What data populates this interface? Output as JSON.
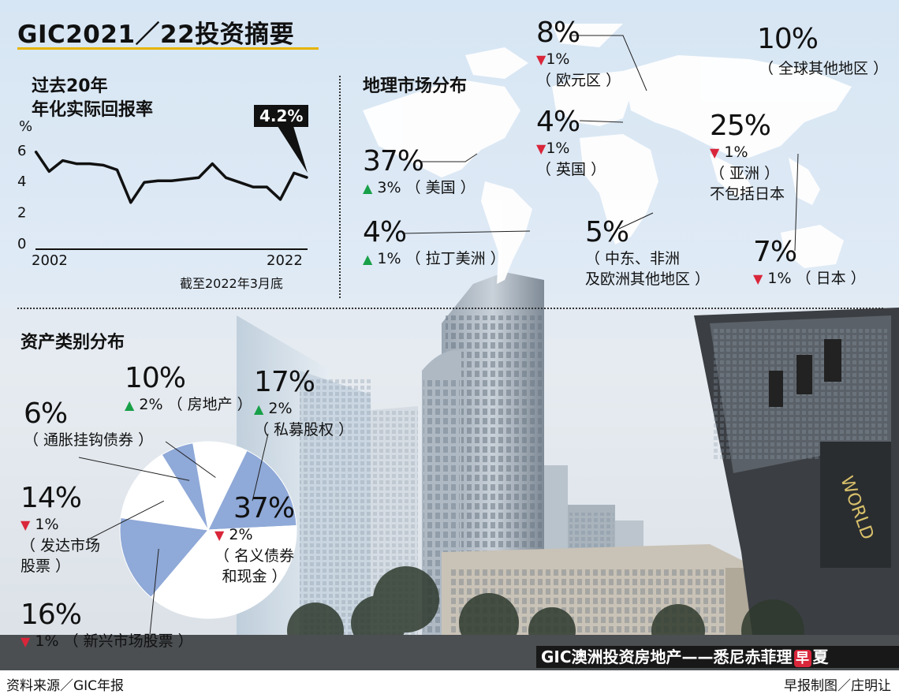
{
  "title": "GIC2021／22投资摘要",
  "returns": {
    "heading_line1": "过去20年",
    "heading_line2": "年化实际回报率",
    "unit": "%",
    "y_ticks": [
      "6",
      "4",
      "2",
      "0"
    ],
    "x_start_label": "2002",
    "x_end_label": "2022",
    "callout": "4.2%",
    "footnote": "截至2022年3月底"
  },
  "geo": {
    "heading": "地理市场分布",
    "items": [
      {
        "pct": "37%",
        "dir": "up",
        "change": "3%",
        "name": "（ 美国 ）"
      },
      {
        "pct": "4%",
        "dir": "up",
        "change": "1%",
        "name": "（ 拉丁美洲 ）"
      },
      {
        "pct": "8%",
        "dir": "down",
        "change": "1%",
        "name": "（ 欧元区 ）"
      },
      {
        "pct": "4%",
        "dir": "down",
        "change": "1%",
        "name": "（ 英国 ）"
      },
      {
        "pct": "10%",
        "dir": "none",
        "change": "",
        "name": "（ 全球其他地区 ）"
      },
      {
        "pct": "25%",
        "dir": "down",
        "change": "1%",
        "name": "（ 亚洲 ）",
        "name2": "不包括日本"
      },
      {
        "pct": "5%",
        "dir": "none",
        "change": "",
        "name": "（ 中东、非洲",
        "name2": "及欧洲其他地区 ）"
      },
      {
        "pct": "7%",
        "dir": "down",
        "change": "1%",
        "name": "（ 日本 ）"
      }
    ]
  },
  "assets": {
    "heading": "资产类别分布",
    "items": [
      {
        "pct": "10%",
        "dir": "up",
        "change": "2%",
        "name": "（ 房地产 ）"
      },
      {
        "pct": "17%",
        "dir": "up",
        "change": "2%",
        "name": "（ 私募股权 ）"
      },
      {
        "pct": "37%",
        "dir": "down",
        "change": "2%",
        "name": "（ 名义债券",
        "name2": "和现金 ）"
      },
      {
        "pct": "16%",
        "dir": "down",
        "change": "1%",
        "name": "（ 新兴市场股票 ）"
      },
      {
        "pct": "14%",
        "dir": "down",
        "change": "1%",
        "name": "（ 发达市场",
        "name2": "股票 ）"
      },
      {
        "pct": "6%",
        "dir": "none",
        "change": "",
        "name": "（ 通胀挂钩债券 ）"
      }
    ]
  },
  "photo_caption": {
    "pre": "GIC澳洲投资房地产——悉尼赤菲理",
    "logo": "早",
    "post": "夏"
  },
  "footer": {
    "source": "资料来源／GIC年报",
    "credit": "早报制图／庄明让"
  },
  "colors": {
    "pie_blue": "#8fa9d8",
    "pie_white": "#ffffff",
    "arrow_up": "#18a048",
    "arrow_down": "#d9263a",
    "underline": "#e6b400"
  },
  "chart_data": [
    {
      "type": "line",
      "title": "过去20年 年化实际回报率",
      "ylabel": "%",
      "x": [
        2002,
        2003,
        2004,
        2005,
        2006,
        2007,
        2008,
        2009,
        2010,
        2011,
        2012,
        2013,
        2014,
        2015,
        2016,
        2017,
        2018,
        2019,
        2020,
        2021,
        2022
      ],
      "values": [
        5.9,
        4.6,
        5.3,
        5.1,
        5.1,
        5.0,
        4.7,
        2.6,
        3.9,
        4.0,
        4.0,
        4.1,
        4.2,
        5.1,
        4.2,
        3.9,
        3.6,
        3.6,
        2.8,
        4.5,
        4.2
      ],
      "ylim": [
        0,
        6.5
      ],
      "annotations": [
        {
          "x": 2022,
          "label": "4.2%"
        }
      ]
    },
    {
      "type": "pie",
      "title": "资产类别分布",
      "categories": [
        "房地产",
        "私募股权",
        "名义债券和现金",
        "新兴市场股票",
        "发达市场股票",
        "通胀挂钩债券"
      ],
      "values": [
        10,
        17,
        37,
        16,
        14,
        6
      ],
      "changes": [
        "+2%",
        "+2%",
        "-2%",
        "-1%",
        "-1%",
        ""
      ]
    },
    {
      "type": "table",
      "title": "地理市场分布",
      "categories": [
        "美国",
        "拉丁美洲",
        "欧元区",
        "英国",
        "全球其他地区",
        "亚洲不包括日本",
        "中东、非洲及欧洲其他地区",
        "日本"
      ],
      "values": [
        37,
        4,
        8,
        4,
        10,
        25,
        5,
        7
      ],
      "changes": [
        "+3%",
        "+1%",
        "-1%",
        "-1%",
        "",
        "-1%",
        "",
        "-1%"
      ]
    }
  ]
}
